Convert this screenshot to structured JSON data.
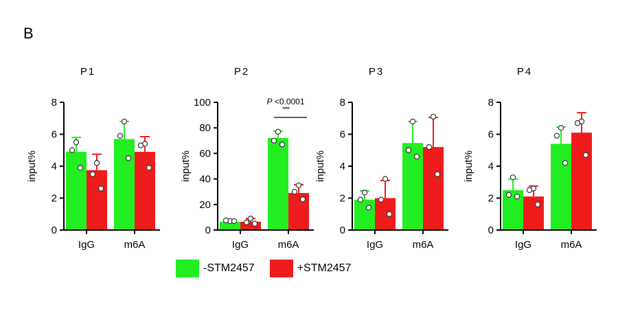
{
  "panel_label": "B",
  "colors": {
    "minus": "#22ee22",
    "plus": "#ee1c1c",
    "axis": "#000000",
    "errbar_minus": "#22ee22",
    "errbar_plus": "#ee1c1c"
  },
  "legend": [
    {
      "label": "-STM2457",
      "color": "#22ee22"
    },
    {
      "label": "+STM2457",
      "color": "#ee1c1c"
    }
  ],
  "chart_data": [
    {
      "type": "bar",
      "title": "P1",
      "ylabel": "input%",
      "ylim": [
        0,
        8
      ],
      "yticks": [
        "0",
        "2",
        "4",
        "6",
        "8"
      ],
      "categories": [
        "IgG",
        "m6A"
      ],
      "series": [
        {
          "name": "-STM2457",
          "values": [
            4.9,
            5.7
          ],
          "err": [
            0.9,
            1.1
          ],
          "points": [
            [
              5.5,
              5.0,
              3.9
            ],
            [
              6.8,
              5.9,
              4.5
            ]
          ]
        },
        {
          "name": "+STM2457",
          "values": [
            3.75,
            4.9
          ],
          "err": [
            1.0,
            0.95
          ],
          "points": [
            [
              4.2,
              3.5,
              2.6
            ],
            [
              5.4,
              5.3,
              3.9
            ]
          ]
        }
      ],
      "annotation": null
    },
    {
      "type": "bar",
      "title": "P2",
      "ylabel": "input%",
      "ylim": [
        0,
        100
      ],
      "yticks": [
        "0",
        "20",
        "40",
        "60",
        "80",
        "100"
      ],
      "categories": [
        "IgG",
        "m6A"
      ],
      "series": [
        {
          "name": "-STM2457",
          "values": [
            6.5,
            72
          ],
          "err": [
            1.0,
            5.5
          ],
          "points": [
            [
              7,
              7.5,
              7
            ],
            [
              77,
              70,
              67
            ]
          ]
        },
        {
          "name": "+STM2457",
          "values": [
            6.5,
            29
          ],
          "err": [
            2.5,
            6.5
          ],
          "points": [
            [
              9,
              6,
              5
            ],
            [
              35,
              30,
              24
            ]
          ]
        }
      ],
      "annotation": {
        "p_prefix": "P",
        "p_value": " <0.0001",
        "stars": "****"
      }
    },
    {
      "type": "bar",
      "title": "P3",
      "ylabel": "input%",
      "ylim": [
        0,
        8
      ],
      "yticks": [
        "0",
        "2",
        "4",
        "6",
        "8"
      ],
      "categories": [
        "IgG",
        "m6A"
      ],
      "series": [
        {
          "name": "-STM2457",
          "values": [
            1.9,
            5.45
          ],
          "err": [
            0.55,
            1.35
          ],
          "points": [
            [
              2.35,
              1.9,
              1.4
            ],
            [
              6.8,
              5.0,
              4.6
            ]
          ]
        },
        {
          "name": "+STM2457",
          "values": [
            2.0,
            5.2
          ],
          "err": [
            1.1,
            1.85
          ],
          "points": [
            [
              3.2,
              1.9,
              1.0
            ],
            [
              7.1,
              5.2,
              3.5
            ]
          ]
        }
      ],
      "annotation": null
    },
    {
      "type": "bar",
      "title": "P4",
      "ylabel": "input%",
      "ylim": [
        0,
        8
      ],
      "yticks": [
        "0",
        "2",
        "4",
        "6",
        "8"
      ],
      "categories": [
        "IgG",
        "m6A"
      ],
      "series": [
        {
          "name": "-STM2457",
          "values": [
            2.5,
            5.4
          ],
          "err": [
            0.7,
            1.05
          ],
          "points": [
            [
              3.3,
              2.2,
              2.1
            ],
            [
              6.4,
              5.9,
              4.2
            ]
          ]
        },
        {
          "name": "+STM2457",
          "values": [
            2.1,
            6.1
          ],
          "err": [
            0.65,
            1.25
          ],
          "points": [
            [
              2.6,
              2.5,
              1.6
            ],
            [
              6.8,
              6.7,
              4.7
            ]
          ]
        }
      ],
      "annotation": null
    }
  ]
}
